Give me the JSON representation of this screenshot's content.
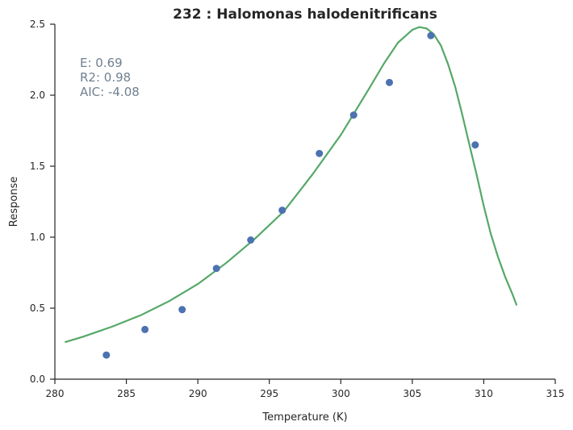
{
  "chart_data": {
    "type": "scatter",
    "title": "232 : Halomonas halodenitrificans",
    "xlabel": "Temperature (K)",
    "ylabel": "Response",
    "xlim": [
      280,
      315
    ],
    "ylim": [
      0.0,
      2.5
    ],
    "xticks": [
      "280",
      "285",
      "290",
      "295",
      "300",
      "305",
      "310",
      "315"
    ],
    "yticks": [
      "0.0",
      "0.5",
      "1.0",
      "1.5",
      "2.0",
      "2.5"
    ],
    "grid": false,
    "annotations": [
      "E:  0.69",
      "R2:  0.98",
      "AIC: -4.08"
    ],
    "points": {
      "x": [
        283.6,
        286.3,
        288.9,
        291.3,
        293.7,
        295.9,
        298.5,
        300.9,
        303.4,
        306.3,
        309.4
      ],
      "y": [
        0.17,
        0.35,
        0.49,
        0.78,
        0.98,
        1.19,
        1.59,
        1.86,
        2.09,
        2.42,
        1.65
      ]
    },
    "fit_curve": {
      "x": [
        280.7,
        282.0,
        284.0,
        286.0,
        288.0,
        290.0,
        292.0,
        294.0,
        296.0,
        298.0,
        300.0,
        302.0,
        303.0,
        304.0,
        305.0,
        305.5,
        306.0,
        306.5,
        307.0,
        307.5,
        308.0,
        308.5,
        309.0,
        309.5,
        310.0,
        310.5,
        311.0,
        311.5,
        312.0,
        312.3
      ],
      "y": [
        0.26,
        0.3,
        0.37,
        0.45,
        0.55,
        0.67,
        0.82,
        0.99,
        1.18,
        1.44,
        1.72,
        2.05,
        2.22,
        2.37,
        2.46,
        2.48,
        2.47,
        2.43,
        2.35,
        2.22,
        2.06,
        1.86,
        1.65,
        1.44,
        1.22,
        1.02,
        0.86,
        0.72,
        0.6,
        0.52
      ]
    }
  },
  "colors": {
    "points": "#4c72b0",
    "fit": "#55a868",
    "annotation": "#708090",
    "axis": "#262626"
  }
}
